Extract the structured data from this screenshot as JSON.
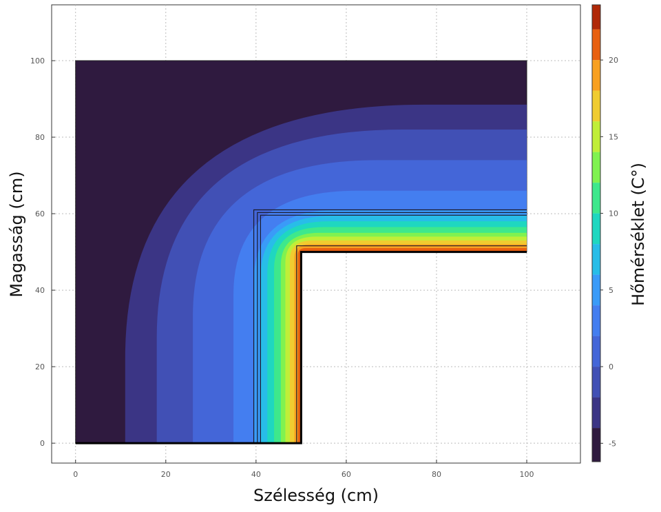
{
  "chart_data": {
    "type": "contour",
    "xlabel": "Szélesség (cm)",
    "ylabel": "Magasság (cm)",
    "xlim": [
      -5.3,
      111.9
    ],
    "ylim": [
      -5.2,
      114.6
    ],
    "xticks": [
      0,
      20,
      40,
      60,
      80,
      100
    ],
    "yticks": [
      0,
      20,
      40,
      60,
      80,
      100
    ],
    "grid": true,
    "domain": {
      "x": [
        0,
        50,
        50,
        100,
        100,
        0
      ],
      "y": [
        0,
        0,
        50,
        50,
        100,
        100
      ],
      "color": "#2f1a3f"
    },
    "contours": [
      {
        "level": -4,
        "color": "#3b3585",
        "x": 11,
        "y": 88.5
      },
      {
        "level": -2,
        "color": "#4150b5",
        "x": 18,
        "y": 82
      },
      {
        "level": 0,
        "color": "#4466d8",
        "x": 26,
        "y": 74
      },
      {
        "level": 2,
        "color": "#447ef0",
        "x": 35,
        "y": 66
      },
      {
        "level": 4,
        "color": "#3a9bf8",
        "x": 39.5,
        "y": 61
      },
      {
        "level": 6,
        "color": "#28bde8",
        "x": 41,
        "y": 59.5
      },
      {
        "level": 8,
        "color": "#1fd7c0",
        "x": 42.5,
        "y": 58
      },
      {
        "level": 10,
        "color": "#3ee88c",
        "x": 44,
        "y": 56.5
      },
      {
        "level": 12,
        "color": "#80f250",
        "x": 45.5,
        "y": 55
      },
      {
        "level": 14,
        "color": "#c0ee38",
        "x": 46.5,
        "y": 54
      },
      {
        "level": 16,
        "color": "#f0cc30",
        "x": 47.5,
        "y": 53
      },
      {
        "level": 18,
        "color": "#f8a020",
        "x": 48.5,
        "y": 52
      },
      {
        "level": 20,
        "color": "#e86010",
        "x": 49.3,
        "y": 51
      }
    ],
    "layer_lines": [
      {
        "x": 39.5,
        "y": 61
      },
      {
        "x": 40.3,
        "y": 60.3
      },
      {
        "x": 41,
        "y": 59.6
      },
      {
        "x": 49,
        "y": 51.6
      }
    ],
    "colorbar": {
      "label": "Hőmérséklet (C°)",
      "lim": [
        -6.2,
        23.6
      ],
      "ticks": [
        -5,
        0,
        5,
        10,
        15,
        20
      ],
      "boundaries": [
        -6.2,
        -4,
        -2,
        0,
        2,
        4,
        6,
        8,
        10,
        12,
        14,
        16,
        18,
        20,
        22,
        23.6
      ],
      "colors": [
        "#2f1a3f",
        "#3b3585",
        "#4150b5",
        "#4466d8",
        "#447ef0",
        "#3a9bf8",
        "#28bde8",
        "#1fd7c0",
        "#3ee88c",
        "#80f250",
        "#c0ee38",
        "#f0cc30",
        "#f8a020",
        "#e86010",
        "#b02808"
      ]
    }
  }
}
